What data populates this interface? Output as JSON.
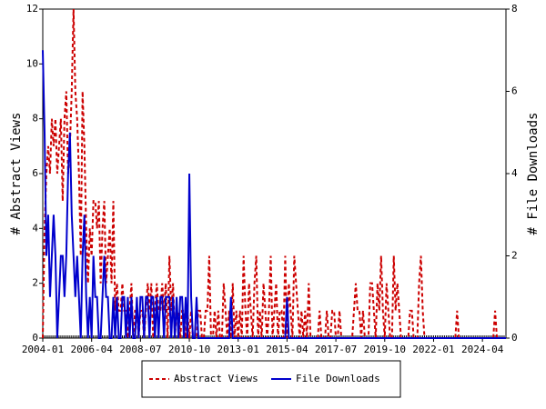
{
  "chart_data": {
    "type": "line",
    "y_label": "# Abstract Views",
    "y2_label": "# File Downloads",
    "x": [
      "2004-01",
      "2004-02",
      "2004-03",
      "2004-04",
      "2004-05",
      "2004-06",
      "2004-07",
      "2004-08",
      "2004-09",
      "2004-10",
      "2004-11",
      "2004-12",
      "2005-01",
      "2005-02",
      "2005-03",
      "2005-04",
      "2005-05",
      "2005-06",
      "2005-07",
      "2005-08",
      "2005-09",
      "2005-10",
      "2005-11",
      "2005-12",
      "2006-01",
      "2006-02",
      "2006-03",
      "2006-04",
      "2006-05",
      "2006-06",
      "2006-07",
      "2006-08",
      "2006-09",
      "2006-10",
      "2006-11",
      "2006-12",
      "2007-01",
      "2007-02",
      "2007-03",
      "2007-04",
      "2007-05",
      "2007-06",
      "2007-07",
      "2007-08",
      "2007-09",
      "2007-10",
      "2007-11",
      "2007-12",
      "2008-01",
      "2008-02",
      "2008-03",
      "2008-04",
      "2008-05",
      "2008-06",
      "2008-07",
      "2008-08",
      "2008-09",
      "2008-10",
      "2008-11",
      "2008-12",
      "2009-01",
      "2009-02",
      "2009-03",
      "2009-04",
      "2009-05",
      "2009-06",
      "2009-07",
      "2009-08",
      "2009-09",
      "2009-10",
      "2009-11",
      "2009-12",
      "2010-01",
      "2010-02",
      "2010-03",
      "2010-04",
      "2010-05",
      "2010-06",
      "2010-07",
      "2010-08",
      "2010-09",
      "2010-10",
      "2010-11",
      "2010-12",
      "2011-01",
      "2011-02",
      "2011-03",
      "2011-04",
      "2011-05",
      "2011-06",
      "2011-07",
      "2011-08",
      "2011-09",
      "2011-10",
      "2011-11",
      "2011-12",
      "2012-01",
      "2012-02",
      "2012-03",
      "2012-04",
      "2012-05",
      "2012-06",
      "2012-07",
      "2012-08",
      "2012-09",
      "2012-10",
      "2012-11",
      "2012-12",
      "2013-01",
      "2013-02",
      "2013-03",
      "2013-04",
      "2013-05",
      "2013-06",
      "2013-07",
      "2013-08",
      "2013-09",
      "2013-10",
      "2013-11",
      "2013-12",
      "2014-01",
      "2014-02",
      "2014-03",
      "2014-04",
      "2014-05",
      "2014-06",
      "2014-07",
      "2014-08",
      "2014-09",
      "2014-10",
      "2014-11",
      "2014-12",
      "2015-01",
      "2015-02",
      "2015-03",
      "2015-04",
      "2015-05",
      "2015-06",
      "2015-07",
      "2015-08",
      "2015-09",
      "2015-10",
      "2015-11",
      "2015-12",
      "2016-01",
      "2016-02",
      "2016-03",
      "2016-04",
      "2016-05",
      "2016-06",
      "2016-07",
      "2016-08",
      "2016-09",
      "2016-10",
      "2016-11",
      "2016-12",
      "2017-01",
      "2017-02",
      "2017-03",
      "2017-04",
      "2017-05",
      "2017-06",
      "2017-07",
      "2017-08",
      "2017-09",
      "2017-10",
      "2017-11",
      "2017-12",
      "2018-01",
      "2018-02",
      "2018-03",
      "2018-04",
      "2018-05",
      "2018-06",
      "2018-07",
      "2018-08",
      "2018-09",
      "2018-10",
      "2018-11",
      "2018-12",
      "2019-01",
      "2019-02",
      "2019-03",
      "2019-04",
      "2019-05",
      "2019-06",
      "2019-07",
      "2019-08",
      "2019-09",
      "2019-10",
      "2019-11",
      "2019-12",
      "2020-01",
      "2020-02",
      "2020-03",
      "2020-04",
      "2020-05",
      "2020-06",
      "2020-07",
      "2020-08",
      "2020-09",
      "2020-10",
      "2020-11",
      "2020-12",
      "2021-01",
      "2021-02",
      "2021-03",
      "2021-04",
      "2021-05",
      "2021-06",
      "2021-07",
      "2021-08",
      "2021-09",
      "2021-10",
      "2021-11",
      "2021-12",
      "2022-01",
      "2022-02",
      "2022-03",
      "2022-04",
      "2022-05",
      "2022-06",
      "2022-07",
      "2022-08",
      "2022-09",
      "2022-10",
      "2022-11",
      "2022-12",
      "2023-01",
      "2023-02",
      "2023-03",
      "2023-04",
      "2023-05",
      "2023-06",
      "2023-07",
      "2023-08",
      "2023-09",
      "2023-10",
      "2023-11",
      "2023-12",
      "2024-01",
      "2024-02",
      "2024-03",
      "2024-04",
      "2024-05",
      "2024-06",
      "2024-07",
      "2024-08",
      "2024-09",
      "2024-10",
      "2024-11",
      "2024-12",
      "2025-01",
      "2025-02",
      "2025-03",
      "2025-04",
      "2025-05"
    ],
    "xticks": [
      "2004-01",
      "2006-04",
      "2008-07",
      "2010-10",
      "2013-01",
      "2015-04",
      "2017-07",
      "2019-10",
      "2022-01",
      "2024-04"
    ],
    "ylim": [
      0,
      12
    ],
    "yticks": [
      0,
      2,
      4,
      6,
      8,
      10,
      12
    ],
    "y2lim": [
      0,
      8
    ],
    "y2ticks": [
      0,
      2,
      4,
      6,
      8
    ],
    "series": [
      {
        "name": "Abstract Views",
        "color": "#cc0000",
        "dash": true,
        "values": [
          0,
          4,
          6,
          7,
          6,
          8,
          7,
          8,
          6,
          7,
          8,
          5,
          8,
          9,
          6,
          7,
          9,
          12,
          9,
          8,
          6,
          3,
          9,
          7,
          4,
          2,
          4,
          3,
          5,
          5,
          4,
          5,
          2,
          4,
          5,
          2,
          3,
          4,
          2,
          5,
          1,
          2,
          1,
          1,
          2,
          1,
          1,
          0,
          1,
          2,
          0,
          1,
          1,
          0,
          1,
          1,
          0,
          1,
          2,
          1,
          2,
          0,
          1,
          2,
          1,
          1,
          2,
          1,
          2,
          0,
          3,
          1,
          2,
          0,
          1,
          1,
          0,
          1,
          1,
          0,
          1,
          0,
          1,
          0,
          0,
          0,
          1,
          1,
          0,
          0,
          1,
          1,
          3,
          0,
          0,
          1,
          0,
          1,
          0,
          0,
          2,
          1,
          0,
          1,
          0,
          2,
          0,
          1,
          0,
          1,
          0,
          3,
          1,
          0,
          2,
          1,
          0,
          2,
          3,
          0,
          1,
          0,
          2,
          1,
          0,
          1,
          3,
          0,
          1,
          2,
          0,
          1,
          1,
          0,
          3,
          0,
          2,
          1,
          0,
          3,
          2,
          1,
          0,
          1,
          0,
          1,
          0,
          2,
          0,
          0,
          0,
          0,
          0,
          1,
          0,
          0,
          0,
          1,
          0,
          0,
          1,
          1,
          0,
          0,
          1,
          0,
          0,
          0,
          0,
          0,
          0,
          0,
          1,
          2,
          1,
          1,
          0,
          1,
          0,
          0,
          0,
          2,
          2,
          1,
          0,
          2,
          1,
          3,
          1,
          0,
          2,
          1,
          0,
          0,
          3,
          1,
          2,
          1,
          0,
          0,
          0,
          0,
          0,
          1,
          1,
          0,
          0,
          0,
          2,
          3,
          1,
          0,
          0,
          0,
          0,
          0,
          0,
          0,
          0,
          0,
          0,
          0,
          0,
          0,
          0,
          0,
          0,
          0,
          0,
          1,
          0,
          0,
          0,
          0,
          0,
          0,
          0,
          0,
          0,
          0,
          0,
          0,
          0,
          0,
          0,
          0,
          0,
          0,
          0,
          0,
          1,
          0,
          0,
          0,
          0,
          0,
          0
        ]
      },
      {
        "name": "File Downloads",
        "color": "#0000cc",
        "axis": "y2",
        "values": [
          7,
          5,
          2,
          3,
          1,
          2,
          3,
          2,
          0,
          1,
          2,
          2,
          1,
          2,
          4,
          5,
          3,
          2,
          1,
          2,
          1,
          0,
          2,
          3,
          1,
          0,
          1,
          0,
          2,
          1,
          1,
          0,
          0,
          1,
          2,
          1,
          1,
          0,
          0,
          1,
          0,
          1,
          0,
          0,
          1,
          1,
          0,
          1,
          0,
          1,
          0,
          0,
          1,
          0,
          1,
          1,
          0,
          1,
          1,
          0,
          1,
          1,
          0,
          1,
          0,
          1,
          1,
          0,
          1,
          1,
          1,
          0,
          1,
          0,
          1,
          0,
          1,
          1,
          0,
          1,
          0,
          4,
          1,
          0,
          0,
          1,
          0,
          0,
          0,
          0,
          0,
          0,
          0,
          0,
          0,
          0,
          0,
          0,
          0,
          0,
          0,
          0,
          0,
          0,
          1,
          0,
          0,
          0,
          0,
          0,
          0,
          0,
          0,
          0,
          0,
          0,
          0,
          0,
          0,
          0,
          0,
          0,
          0,
          0,
          0,
          0,
          0,
          0,
          0,
          0,
          0,
          0,
          0,
          0,
          0,
          1,
          0,
          0,
          0,
          0,
          0,
          0,
          0,
          0,
          0,
          0,
          0,
          0,
          0,
          0,
          0,
          0,
          0,
          0,
          0,
          0,
          0,
          0,
          0,
          0,
          0,
          0,
          0,
          0,
          0,
          0,
          0,
          0,
          0,
          0,
          0,
          0,
          0,
          0,
          0,
          0,
          0,
          0,
          0,
          0,
          0,
          0,
          0,
          0,
          0,
          0,
          0,
          0,
          0,
          0,
          0,
          0,
          0,
          0,
          0,
          0,
          0,
          0,
          0,
          0,
          0,
          0,
          0,
          0,
          0,
          0,
          0,
          0,
          0,
          0,
          0,
          0,
          0,
          0,
          0,
          0,
          0,
          0,
          0,
          0,
          0,
          0,
          0,
          0,
          0,
          0,
          0,
          0,
          0,
          0,
          0,
          0,
          0,
          0,
          0,
          0,
          0,
          0,
          0,
          0,
          0,
          0,
          0,
          0,
          0,
          0,
          0,
          0,
          0,
          0,
          0,
          0,
          0,
          0,
          0,
          0,
          0
        ]
      }
    ]
  }
}
